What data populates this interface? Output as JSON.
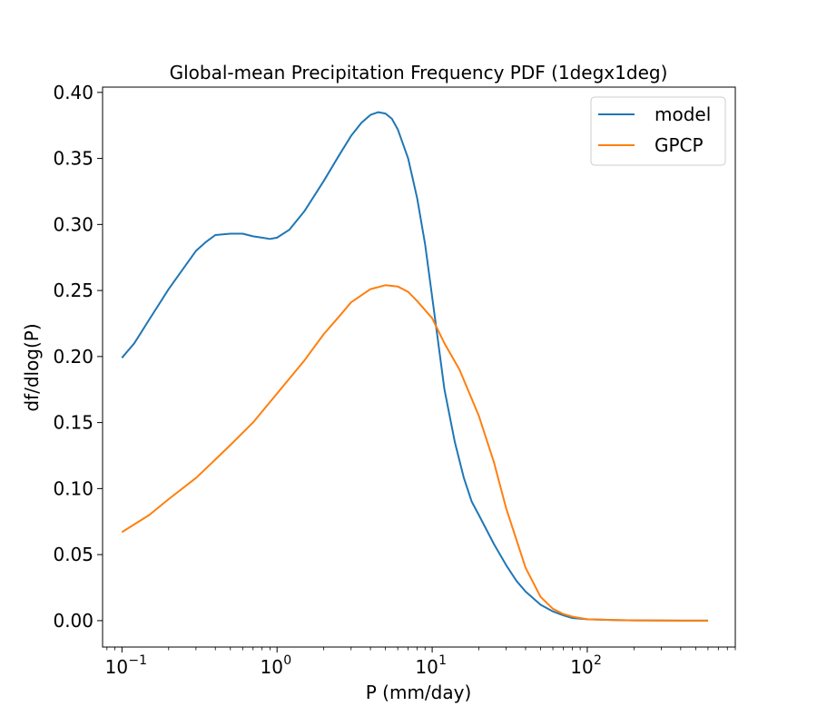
{
  "chart_data": {
    "type": "line",
    "title": "Global-mean Precipitation Frequency PDF (1degx1deg)",
    "xlabel": "P (mm/day)",
    "ylabel": "df/dlog(P)",
    "xscale": "log",
    "xlim": [
      0.075,
      900
    ],
    "ylim": [
      -0.02,
      0.404
    ],
    "grid": false,
    "legend_position": "top-right",
    "x_ticks": [
      {
        "value": 0.1,
        "base": "10",
        "exp": "−1"
      },
      {
        "value": 1,
        "base": "10",
        "exp": "0"
      },
      {
        "value": 10,
        "base": "10",
        "exp": "1"
      },
      {
        "value": 100,
        "base": "10",
        "exp": "2"
      }
    ],
    "y_ticks": [
      {
        "value": 0.0,
        "label": "0.00"
      },
      {
        "value": 0.05,
        "label": "0.05"
      },
      {
        "value": 0.1,
        "label": "0.10"
      },
      {
        "value": 0.15,
        "label": "0.15"
      },
      {
        "value": 0.2,
        "label": "0.20"
      },
      {
        "value": 0.25,
        "label": "0.25"
      },
      {
        "value": 0.3,
        "label": "0.30"
      },
      {
        "value": 0.35,
        "label": "0.35"
      },
      {
        "value": 0.4,
        "label": "0.40"
      }
    ],
    "series": [
      {
        "name": "model",
        "color": "#1f77b4",
        "x": [
          0.1,
          0.12,
          0.15,
          0.2,
          0.25,
          0.3,
          0.35,
          0.4,
          0.5,
          0.6,
          0.7,
          0.8,
          0.9,
          1.0,
          1.2,
          1.5,
          2.0,
          2.5,
          3.0,
          3.5,
          4.0,
          4.5,
          5.0,
          5.5,
          6.0,
          7.0,
          8.0,
          9.0,
          10,
          12,
          14,
          16,
          18,
          20,
          25,
          30,
          35,
          40,
          50,
          60,
          70,
          80,
          100,
          150,
          200,
          300,
          400,
          600
        ],
        "y": [
          0.199,
          0.21,
          0.228,
          0.251,
          0.267,
          0.28,
          0.287,
          0.292,
          0.293,
          0.293,
          0.291,
          0.29,
          0.289,
          0.29,
          0.296,
          0.31,
          0.333,
          0.352,
          0.367,
          0.377,
          0.383,
          0.385,
          0.384,
          0.38,
          0.372,
          0.35,
          0.32,
          0.285,
          0.245,
          0.175,
          0.135,
          0.108,
          0.09,
          0.08,
          0.058,
          0.042,
          0.03,
          0.022,
          0.012,
          0.007,
          0.004,
          0.002,
          0.001,
          0.0004,
          0.0002,
          0.0001,
          0.0,
          0.0
        ]
      },
      {
        "name": "GPCP",
        "color": "#ff7f0e",
        "x": [
          0.1,
          0.15,
          0.2,
          0.3,
          0.4,
          0.5,
          0.7,
          1.0,
          1.5,
          2.0,
          2.5,
          3.0,
          4.0,
          5.0,
          6.0,
          7.0,
          8.0,
          10,
          12,
          15,
          20,
          25,
          30,
          40,
          50,
          60,
          70,
          80,
          100,
          150,
          200,
          300,
          400,
          600
        ],
        "y": [
          0.067,
          0.08,
          0.092,
          0.108,
          0.122,
          0.133,
          0.15,
          0.172,
          0.197,
          0.217,
          0.23,
          0.241,
          0.251,
          0.254,
          0.253,
          0.249,
          0.242,
          0.229,
          0.21,
          0.19,
          0.155,
          0.12,
          0.085,
          0.04,
          0.018,
          0.009,
          0.005,
          0.003,
          0.001,
          0.0005,
          0.0002,
          0.0001,
          0.0,
          0.0
        ]
      }
    ]
  }
}
